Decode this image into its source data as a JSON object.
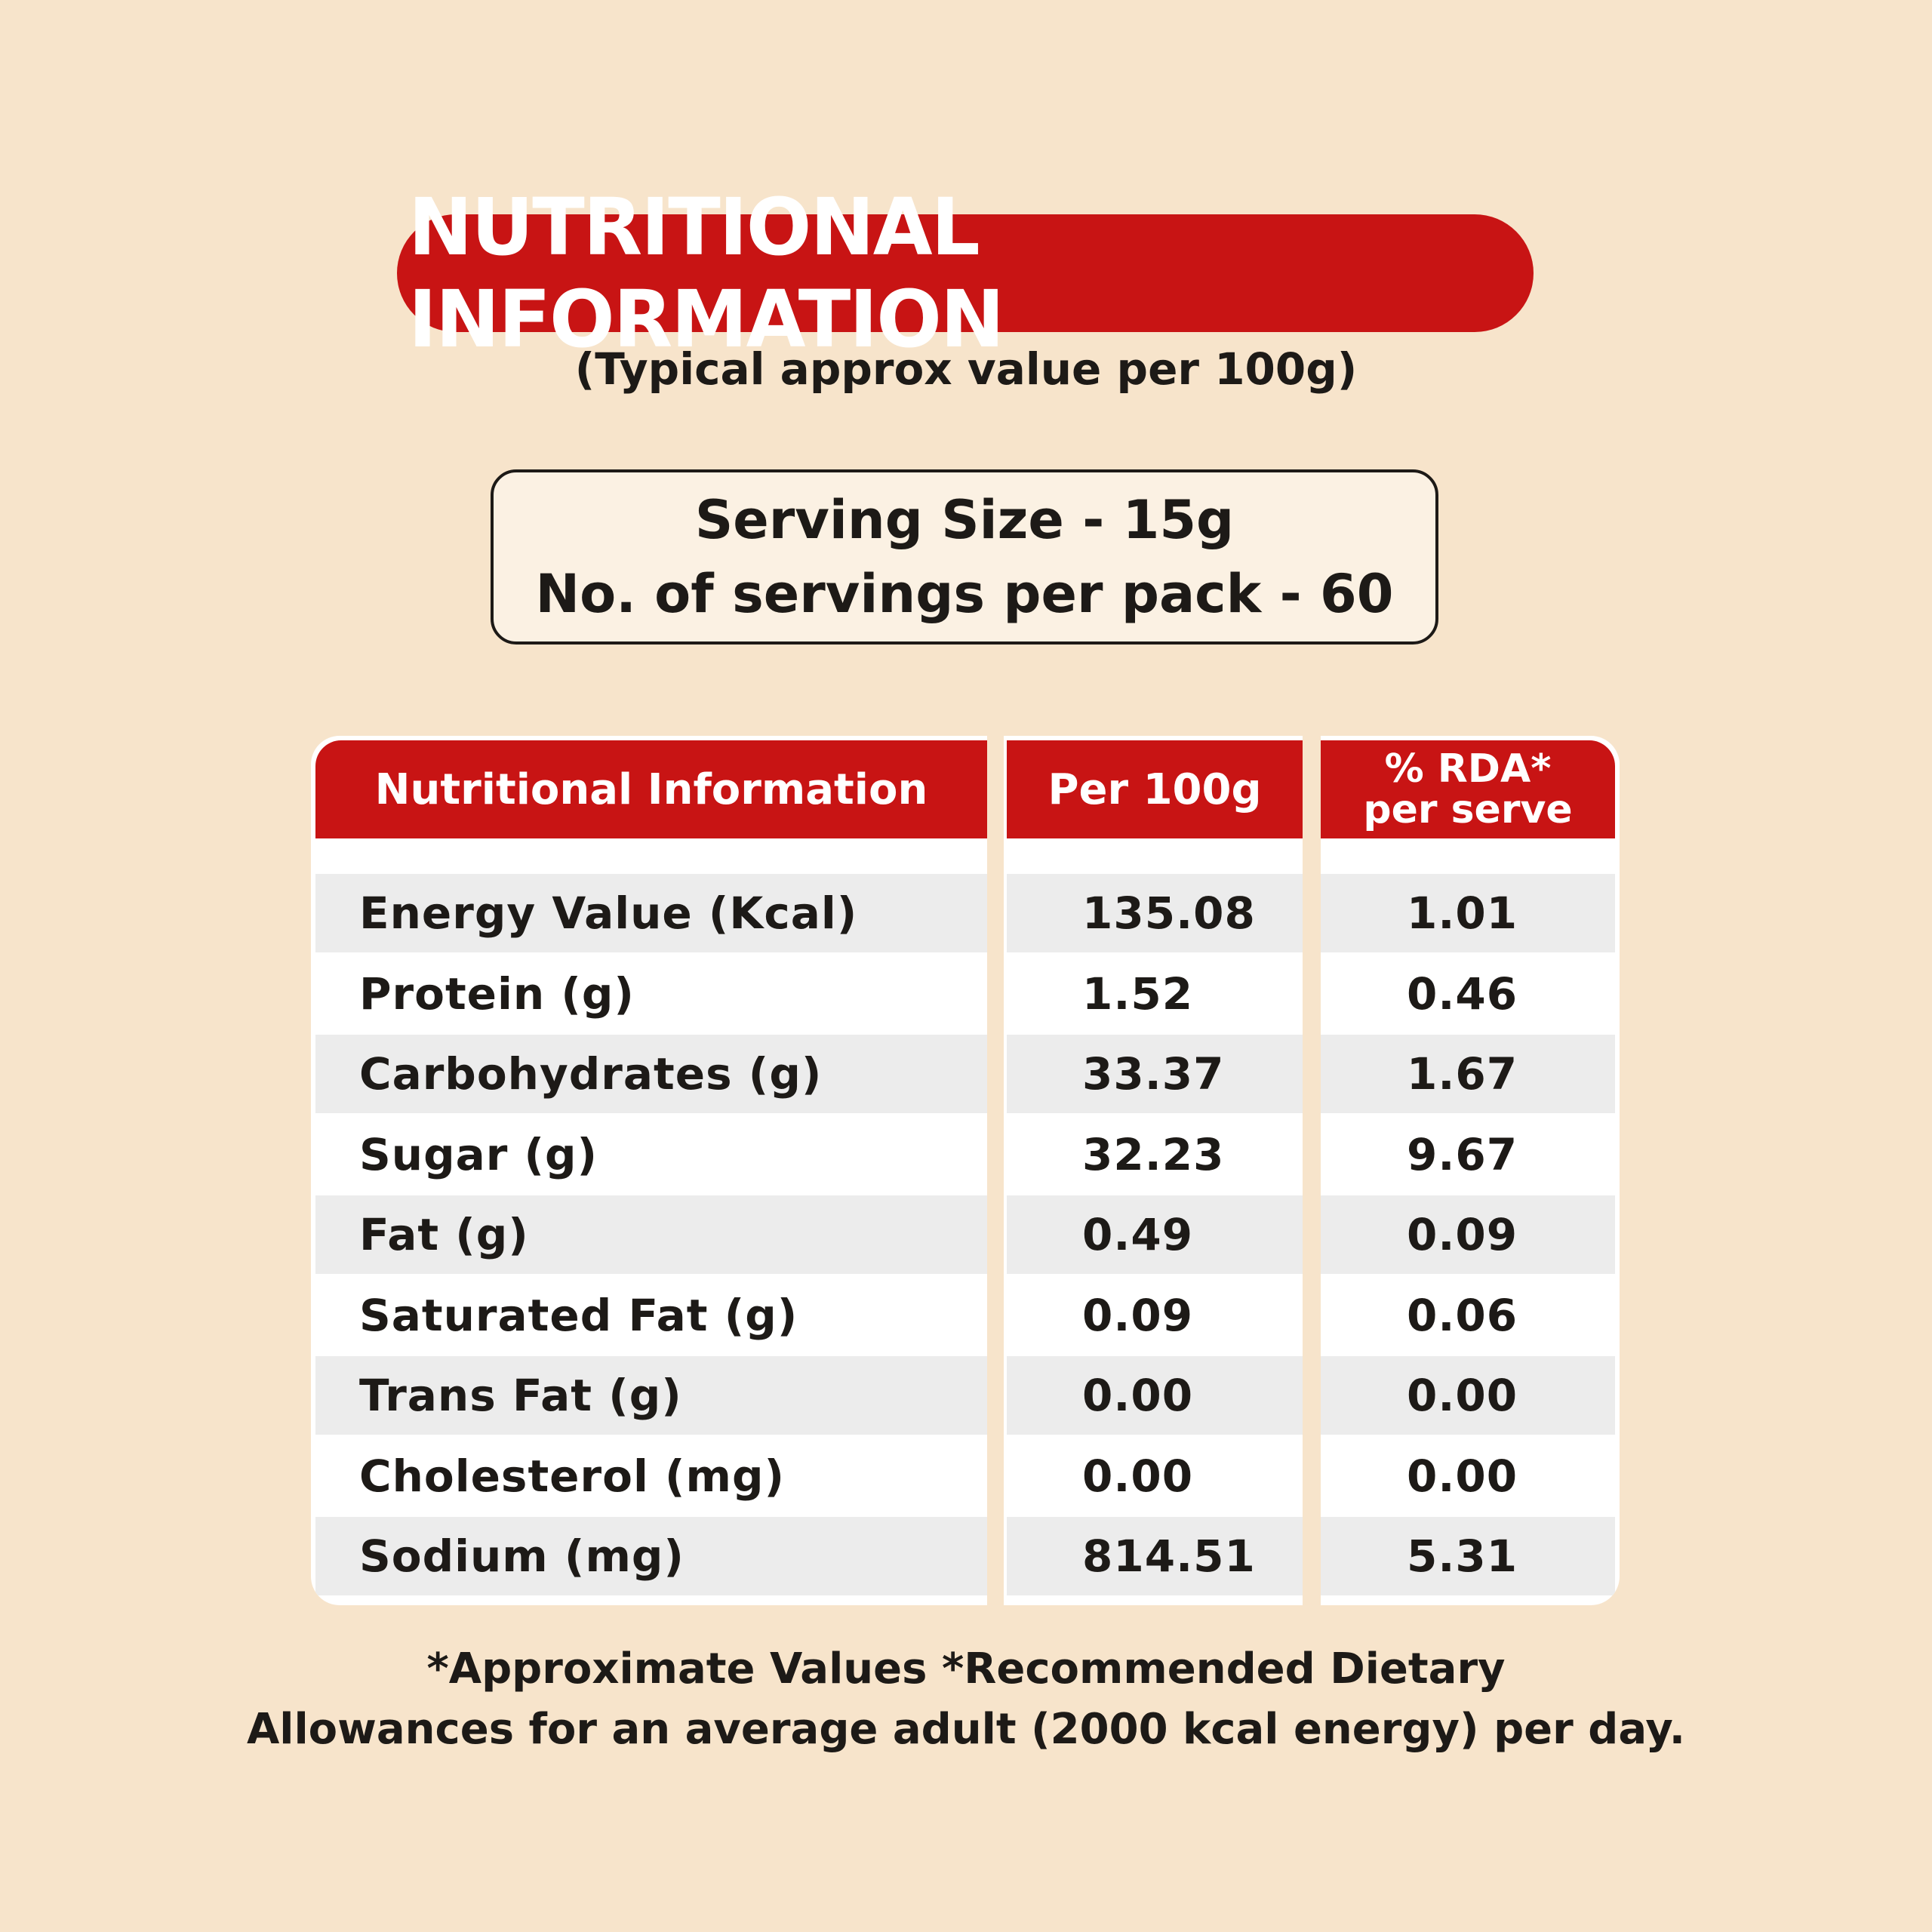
{
  "title": "NUTRITIONAL INFORMATION",
  "subtitle": "(Typical approx value per 100g)",
  "serving": {
    "size": "Serving Size - 15g",
    "per_pack": "No. of servings per pack - 60"
  },
  "table": {
    "headers": [
      "Nutritional Information",
      "Per 100g",
      "% RDA*",
      "per serve"
    ],
    "rows": [
      {
        "name": "Energy Value (Kcal)",
        "per100": "135.08",
        "rda": "1.01"
      },
      {
        "name": "Protein (g)",
        "per100": "1.52",
        "rda": "0.46"
      },
      {
        "name": "Carbohydrates (g)",
        "per100": "33.37",
        "rda": "1.67"
      },
      {
        "name": "Sugar (g)",
        "per100": "32.23",
        "rda": "9.67"
      },
      {
        "name": "Fat (g)",
        "per100": "0.49",
        "rda": "0.09"
      },
      {
        "name": "Saturated Fat (g)",
        "per100": "0.09",
        "rda": "0.06"
      },
      {
        "name": "Trans Fat (g)",
        "per100": "0.00",
        "rda": "0.00"
      },
      {
        "name": "Cholesterol (mg)",
        "per100": "0.00",
        "rda": "0.00"
      },
      {
        "name": "Sodium (mg)",
        "per100": "814.51",
        "rda": "5.31"
      }
    ]
  },
  "footnote": {
    "line1": "*Approximate Values *Recommended Dietary",
    "line2": "Allowances for an average adult (2000 kcal energy) per day."
  },
  "colors": {
    "background": "#f7e4cb",
    "accent_red": "#c81414",
    "row_shade": "#ececec"
  }
}
